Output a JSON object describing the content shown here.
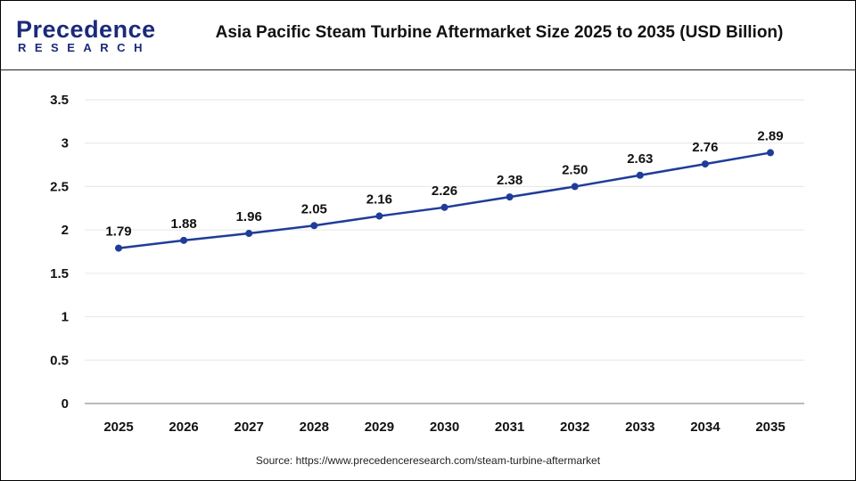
{
  "logo": {
    "line1": "Precedence",
    "line2": "RESEARCH"
  },
  "header": {
    "title": "Asia Pacific Steam Turbine Aftermarket Size 2025 to 2035 (USD Billion)"
  },
  "source": "Source: https://www.precedenceresearch.com/steam-turbine-aftermarket",
  "chart_data": {
    "type": "line",
    "title": "Asia Pacific Steam Turbine Aftermarket Size 2025 to 2035 (USD Billion)",
    "categories": [
      "2025",
      "2026",
      "2027",
      "2028",
      "2029",
      "2030",
      "2031",
      "2032",
      "2033",
      "2034",
      "2035"
    ],
    "values": [
      1.79,
      1.88,
      1.96,
      2.05,
      2.16,
      2.26,
      2.38,
      2.5,
      2.63,
      2.76,
      2.89
    ],
    "data_labels": [
      "1.79",
      "1.88",
      "1.96",
      "2.05",
      "2.16",
      "2.26",
      "2.38",
      "2.50",
      "2.63",
      "2.76",
      "2.89"
    ],
    "y_ticks": [
      "0",
      "0.5",
      "1",
      "1.5",
      "2",
      "2.5",
      "3",
      "3.5"
    ],
    "ylim": [
      0,
      3.5
    ],
    "grid": true,
    "line_color": "#1f3c99",
    "xlabel": "",
    "ylabel": ""
  }
}
